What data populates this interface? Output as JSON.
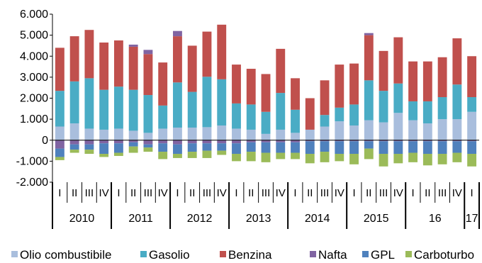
{
  "chart_data": {
    "type": "bar",
    "stacked": true,
    "title": "",
    "xlabel": "",
    "ylabel": "",
    "ylim": [
      -2000,
      6000
    ],
    "yticks": [
      "6.000",
      "5.000",
      "4.000",
      "3.000",
      "2.000",
      "1.000",
      "0",
      "-1.000",
      "-2.000"
    ],
    "legend_position": "bottom",
    "quarter_labels": [
      "I",
      "II",
      "III",
      "IV",
      "I",
      "II",
      "III",
      "IV",
      "I",
      "II",
      "III",
      "IV",
      "I",
      "II",
      "III",
      "IV",
      "I",
      "II",
      "III",
      "IV",
      "I",
      "II",
      "III",
      "IV",
      "I",
      "II",
      "III",
      "IV",
      "I"
    ],
    "year_groups": [
      {
        "label": "2010",
        "count": 4
      },
      {
        "label": "2011",
        "count": 4
      },
      {
        "label": "2012",
        "count": 4
      },
      {
        "label": "2013",
        "count": 4
      },
      {
        "label": "2014",
        "count": 4
      },
      {
        "label": "2015",
        "count": 4
      },
      {
        "label": "16",
        "count": 4
      },
      {
        "label": "17",
        "count": 1
      }
    ],
    "series": [
      {
        "name": "Olio combustibile",
        "color": "#a9bedd",
        "values": [
          650,
          800,
          550,
          500,
          550,
          450,
          350,
          550,
          600,
          600,
          620,
          700,
          550,
          500,
          300,
          500,
          350,
          500,
          650,
          900,
          700,
          950,
          850,
          1300,
          950,
          800,
          1000,
          1000,
          1350
        ]
      },
      {
        "name": "Gasolio",
        "color": "#4aacc5",
        "values": [
          1700,
          2000,
          2400,
          1900,
          2000,
          1950,
          1800,
          1100,
          2150,
          1700,
          2400,
          2200,
          1200,
          1200,
          1050,
          1750,
          1100,
          0,
          550,
          650,
          1000,
          1900,
          1500,
          1400,
          900,
          1050,
          1050,
          1650,
          700
        ]
      },
      {
        "name": "Benzina",
        "color": "#c0504d",
        "values": [
          2050,
          2150,
          2300,
          2250,
          2200,
          2050,
          1950,
          2050,
          2200,
          2200,
          2150,
          2600,
          1850,
          1700,
          1800,
          2100,
          1500,
          1500,
          1650,
          2050,
          1950,
          2150,
          1900,
          2200,
          1900,
          1900,
          1900,
          2200,
          1950
        ]
      },
      {
        "name": "Nafta",
        "color": "#8064a2",
        "values": [
          -400,
          -200,
          -200,
          -150,
          -150,
          -100,
          -200,
          -150,
          -200,
          -150,
          -150,
          -150,
          -150,
          -100,
          -100,
          -100,
          -100,
          -50,
          -50,
          -50,
          -50,
          -50,
          -50,
          -50,
          -50,
          -50,
          -50,
          -50,
          -50
        ]
      },
      {
        "name": "GPL",
        "color": "#4f81bd",
        "values": [
          -400,
          -250,
          -250,
          -500,
          -450,
          -200,
          -150,
          -400,
          -450,
          -400,
          -350,
          -350,
          -500,
          -450,
          -500,
          -500,
          -500,
          -600,
          -500,
          -600,
          -600,
          -350,
          -600,
          -600,
          -550,
          -600,
          -600,
          -550,
          -600
        ]
      },
      {
        "name": "Carboturbo",
        "color": "#9bbb59",
        "values": [
          -150,
          -150,
          -200,
          -150,
          -150,
          -300,
          -200,
          -350,
          -200,
          -300,
          -350,
          -200,
          -350,
          -450,
          -450,
          -300,
          -300,
          -450,
          -500,
          -350,
          -500,
          -500,
          -600,
          -450,
          -450,
          -550,
          -500,
          -450,
          -600
        ]
      }
    ],
    "positive_extra": [
      {
        "series": "Nafta",
        "index": 5,
        "value": 100
      },
      {
        "series": "Nafta",
        "index": 6,
        "value": 200
      },
      {
        "series": "Nafta",
        "index": 8,
        "value": 250
      },
      {
        "series": "Nafta",
        "index": 21,
        "value": 100
      }
    ]
  }
}
